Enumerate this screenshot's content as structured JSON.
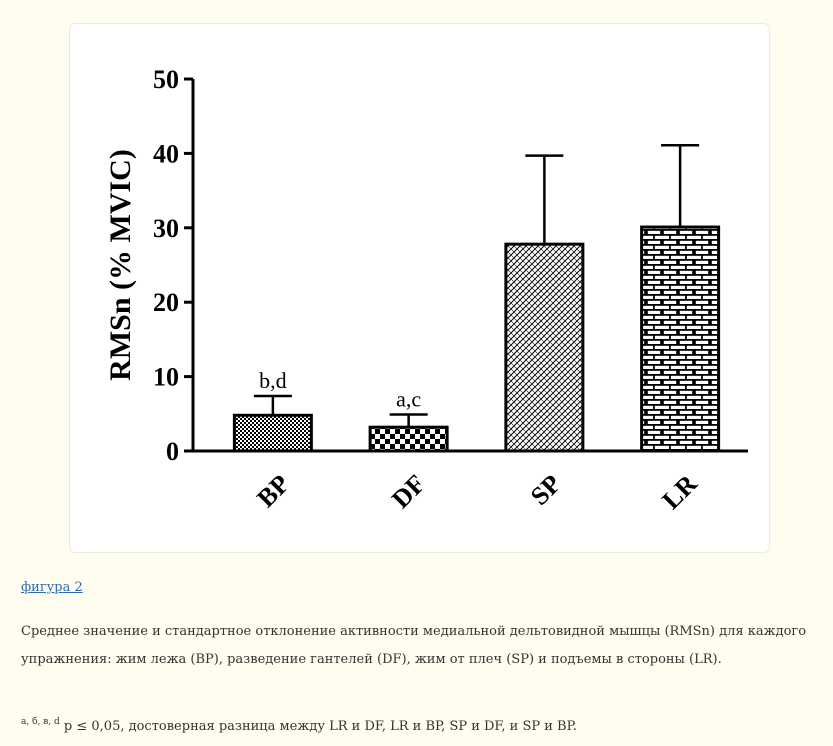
{
  "figure_link": "фигура 2",
  "caption": "Среднее значение и стандартное отклонение активности медиальной дельтовидной мышцы (RMSn) для каждого упражнения: жим лежа (BP), разведение гантелей (DF), жим от плеч (SP) и подъемы в стороны (LR).",
  "footnote": {
    "marks": "а, б, в, d",
    "text": " p ≤ 0,05, достоверная разница между LR и DF, LR и BP, SP и DF, и SP и BP."
  },
  "chart_data": {
    "type": "bar",
    "title": "",
    "xlabel": "",
    "ylabel": "RMSn (% MVIC)",
    "ylim": [
      0,
      50
    ],
    "yticks": [
      0,
      10,
      20,
      30,
      40,
      50
    ],
    "grid": false,
    "categories": [
      "BP",
      "DF",
      "SP",
      "LR"
    ],
    "values": [
      4.8,
      3.2,
      27.8,
      30.1
    ],
    "errors": [
      2.6,
      1.7,
      11.9,
      11.0
    ],
    "annotations": [
      "b,d",
      "a,c",
      "",
      ""
    ],
    "patterns": [
      "dense-checker",
      "checker",
      "crosshatch",
      "brick"
    ],
    "bar_color": "#000000"
  }
}
